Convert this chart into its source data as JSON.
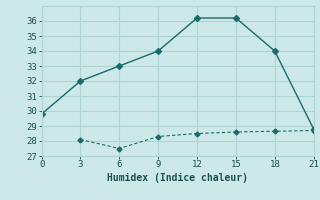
{
  "line1_x": [
    0,
    3,
    6,
    9,
    12,
    15,
    18,
    21
  ],
  "line1_y": [
    29.8,
    32.0,
    33.0,
    34.0,
    36.2,
    36.2,
    34.0,
    28.8
  ],
  "line2_x": [
    3,
    6,
    9,
    12,
    15,
    18,
    21
  ],
  "line2_y": [
    28.1,
    27.5,
    28.3,
    28.5,
    28.6,
    28.65,
    28.7
  ],
  "line_color": "#1a6b6b",
  "bg_color": "#cce8e8",
  "grid_color": "#b0d4d4",
  "xlabel": "Humidex (Indice chaleur)",
  "ylim": [
    27,
    37
  ],
  "xlim": [
    0,
    21
  ],
  "yticks": [
    27,
    28,
    29,
    30,
    31,
    32,
    33,
    34,
    35,
    36
  ],
  "xticks": [
    0,
    3,
    6,
    9,
    12,
    15,
    18,
    21
  ],
  "font_color": "#1a5050",
  "tick_fontsize": 6.5,
  "label_fontsize": 7.0
}
